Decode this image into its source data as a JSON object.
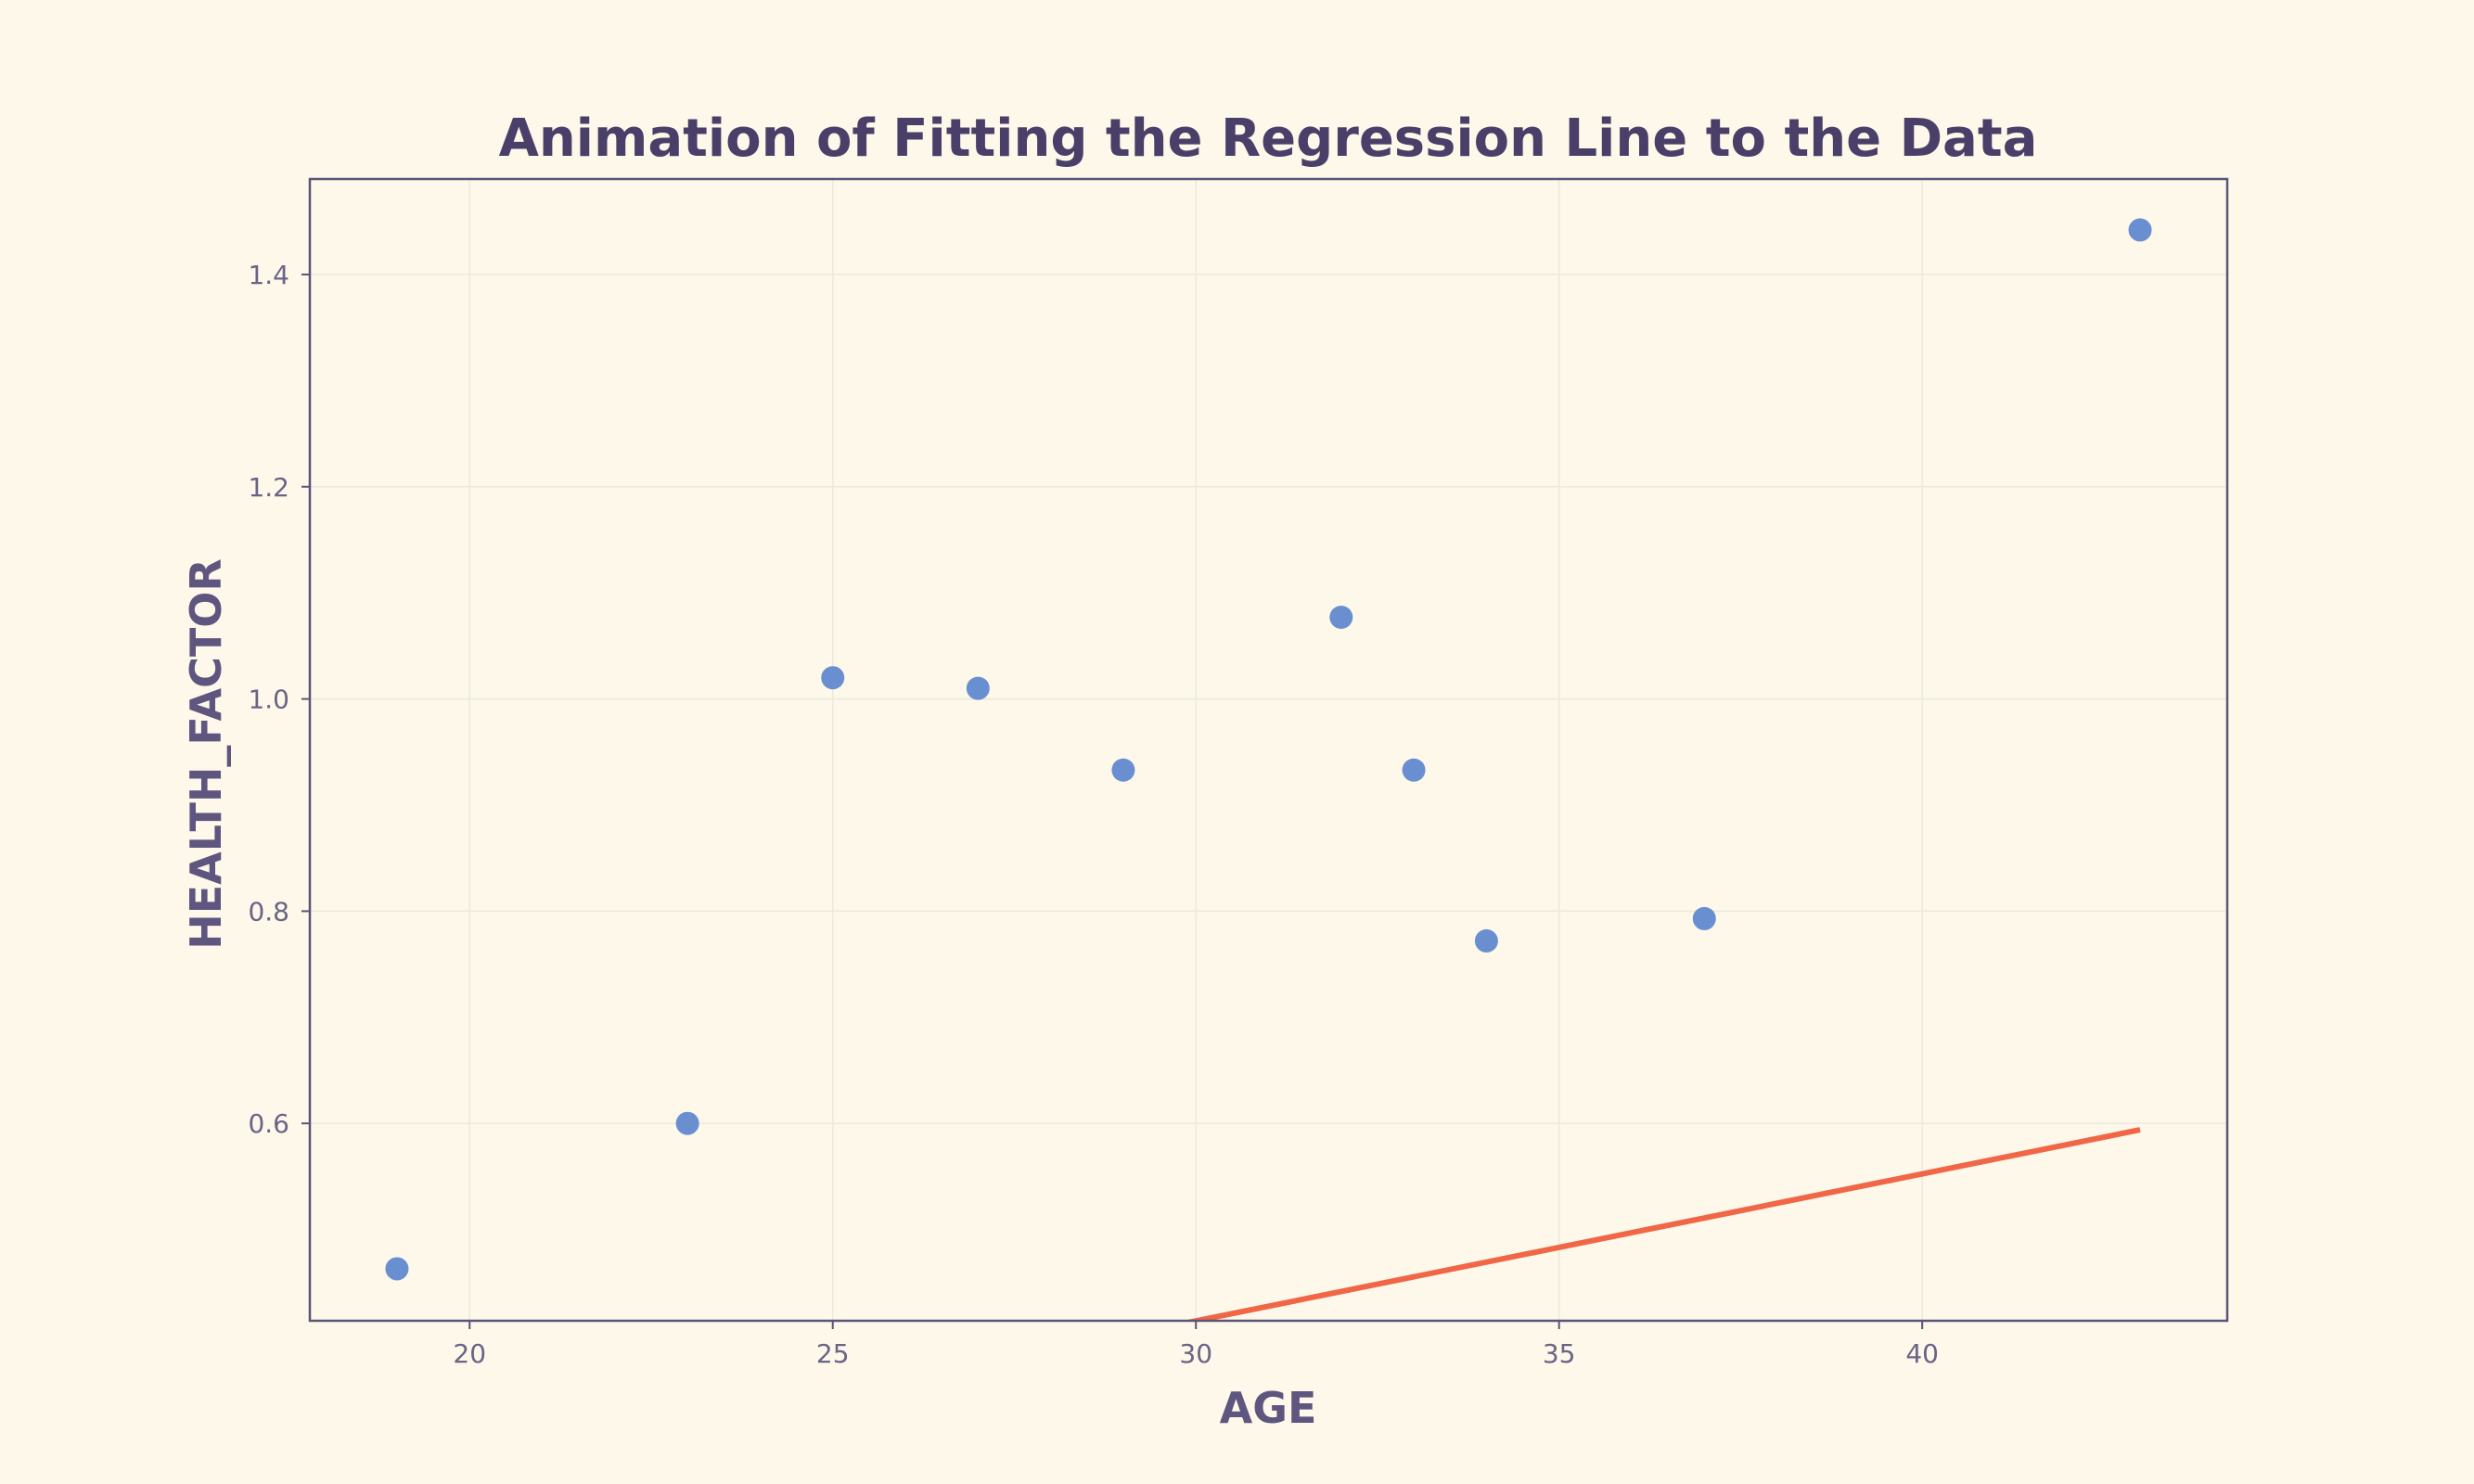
{
  "chart_data": {
    "type": "scatter",
    "title": "Animation of Fitting the Regression Line to the Data",
    "xlabel": "AGE",
    "ylabel": "HEALTH_FACTOR",
    "xlim": [
      17.8,
      44.2
    ],
    "ylim": [
      0.414,
      1.49
    ],
    "xticks": [
      20,
      25,
      30,
      35,
      40
    ],
    "yticks": [
      0.6,
      0.8,
      1.0,
      1.2,
      1.4
    ],
    "xtick_labels": [
      "20",
      "25",
      "30",
      "35",
      "40"
    ],
    "ytick_labels": [
      "0.6",
      "0.8",
      "1.0",
      "1.2",
      "1.4"
    ],
    "grid": true,
    "colors": {
      "background": "#fdf8e9",
      "frame": "#5a5478",
      "grid": "#ebeadc",
      "points": "#6a8fd1",
      "line": "#f06646"
    },
    "series": [
      {
        "type": "scatter",
        "x": [
          19,
          23,
          25,
          27,
          29,
          32,
          33,
          34,
          37,
          43
        ],
        "y": [
          0.463,
          0.6,
          1.02,
          1.01,
          0.933,
          1.077,
          0.933,
          0.772,
          0.793,
          1.442
        ]
      },
      {
        "type": "line",
        "x": [
          29.0,
          43.0
        ],
        "y": [
          0.4,
          0.594
        ]
      }
    ]
  }
}
